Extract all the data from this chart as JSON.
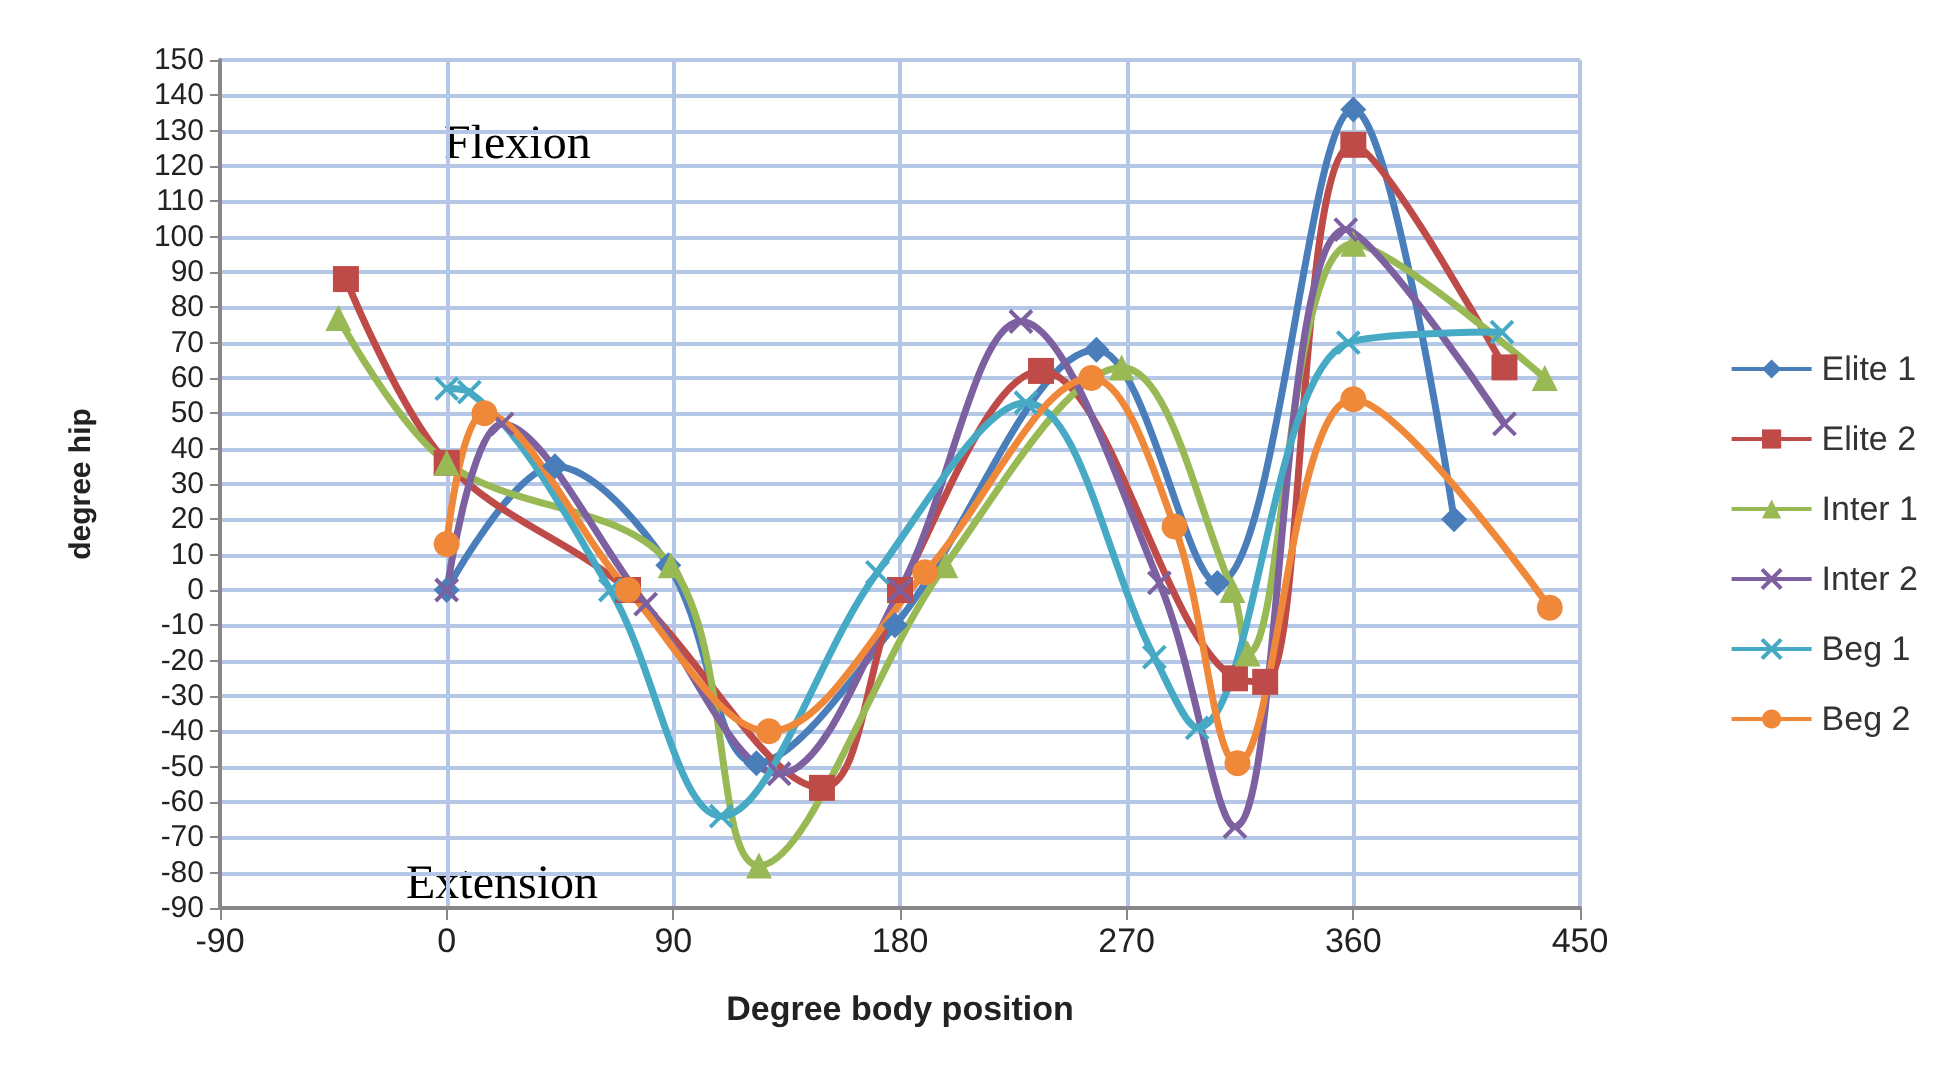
{
  "chart_data": {
    "type": "line",
    "xlabel": "Degree body position",
    "ylabel": "degree hip",
    "xlim": [
      -90,
      450
    ],
    "xticks": [
      -90,
      0,
      90,
      180,
      270,
      360,
      450
    ],
    "ylim": [
      -90,
      150
    ],
    "yticks": [
      -90,
      -80,
      -70,
      -60,
      -50,
      -40,
      -30,
      -20,
      -10,
      0,
      10,
      20,
      30,
      40,
      50,
      60,
      70,
      80,
      90,
      100,
      110,
      120,
      130,
      140,
      150
    ],
    "grid": true,
    "legend": "right",
    "annotations": [
      "Flexion",
      "Extension"
    ],
    "series": [
      {
        "name": "Elite 1",
        "color": "#4a7ebb",
        "marker": "diamond",
        "x": [
          0,
          43,
          88,
          123,
          178,
          258,
          306,
          360,
          400
        ],
        "values": [
          0,
          35,
          7,
          -49,
          -10,
          68,
          2,
          136,
          20
        ]
      },
      {
        "name": "Elite 2",
        "color": "#be4b48",
        "marker": "square",
        "x": [
          -40,
          0,
          72,
          149,
          180,
          236,
          313,
          325,
          360,
          420
        ],
        "values": [
          88,
          36,
          0,
          -56,
          0,
          62,
          -25,
          -26,
          126,
          63
        ]
      },
      {
        "name": "Inter 1",
        "color": "#98b954",
        "marker": "triangle",
        "x": [
          -43,
          0,
          89,
          124,
          198,
          268,
          312,
          318,
          360,
          436
        ],
        "values": [
          77,
          36,
          7,
          -78,
          7,
          63,
          0,
          -18,
          98,
          60
        ]
      },
      {
        "name": "Inter 2",
        "color": "#7d60a0",
        "marker": "cross",
        "x": [
          0,
          22,
          79,
          132,
          180,
          228,
          283,
          313,
          357,
          420
        ],
        "values": [
          0,
          47,
          -4,
          -52,
          0,
          76,
          2,
          -67,
          102,
          47
        ]
      },
      {
        "name": "Beg 1",
        "color": "#46aac5",
        "marker": "cross",
        "x": [
          0,
          9,
          65,
          109,
          171,
          230,
          281,
          298,
          358,
          419
        ],
        "values": [
          57,
          56,
          0,
          -64,
          5,
          53,
          -19,
          -39,
          70,
          73
        ]
      },
      {
        "name": "Beg 2",
        "color": "#f0883a",
        "marker": "circle",
        "x": [
          0,
          15,
          72,
          128,
          190,
          256,
          289,
          314,
          360,
          438
        ],
        "values": [
          13,
          50,
          0,
          -40,
          5,
          60,
          18,
          -49,
          54,
          -5
        ]
      }
    ]
  }
}
